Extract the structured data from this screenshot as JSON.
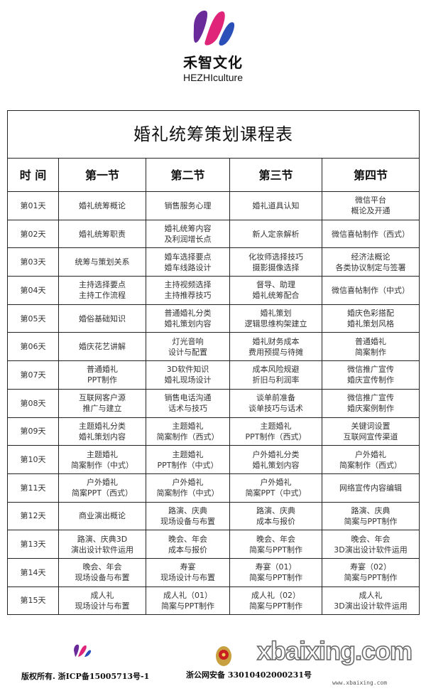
{
  "brand": {
    "name_cn": "禾智文化",
    "name_en": "HEZHIculture"
  },
  "table": {
    "title": "婚礼统筹策划课程表",
    "headers": [
      "时 间",
      "第一节",
      "第二节",
      "第三节",
      "第四节"
    ],
    "rows": [
      {
        "day": "第01天",
        "cells": [
          [
            "婚礼统筹概论"
          ],
          [
            "销售服务心理"
          ],
          [
            "婚礼道具认知"
          ],
          [
            "微信平台",
            "概论及开通"
          ]
        ]
      },
      {
        "day": "第02天",
        "cells": [
          [
            "婚礼统筹职责"
          ],
          [
            "婚礼统筹内容",
            "及利润增长点"
          ],
          [
            "新人定亲解析"
          ],
          [
            "微信喜帖制作（西式）"
          ]
        ]
      },
      {
        "day": "第03天",
        "cells": [
          [
            "统筹与策划关系"
          ],
          [
            "婚车选择要点",
            "婚车线路设计"
          ],
          [
            "化妆师选择技巧",
            "摄影摄像选择"
          ],
          [
            "经济法概论",
            "各类协议制定与签署"
          ]
        ]
      },
      {
        "day": "第04天",
        "cells": [
          [
            "主持选择要点",
            "主持工作流程"
          ],
          [
            "主持视频选择",
            "主持推荐技巧"
          ],
          [
            "督导、助理",
            "婚礼统筹配合"
          ],
          [
            "微信喜帖制作（中式）"
          ]
        ]
      },
      {
        "day": "第05天",
        "cells": [
          [
            "婚俗基础知识"
          ],
          [
            "普通婚礼分类",
            "婚礼策划内容"
          ],
          [
            "婚礼策划",
            "逻辑思维构架建立"
          ],
          [
            "婚庆色彩搭配",
            "婚礼策划风格"
          ]
        ]
      },
      {
        "day": "第06天",
        "cells": [
          [
            "婚庆花艺讲解"
          ],
          [
            "灯光音响",
            "设计与配置"
          ],
          [
            "婚礼财务成本",
            "费用预提与待摊"
          ],
          [
            "普通婚礼",
            "简案制作"
          ]
        ]
      },
      {
        "day": "第07天",
        "cells": [
          [
            "普通婚礼",
            "PPT制作"
          ],
          [
            "3D软件知识",
            "婚礼现场设计"
          ],
          [
            "成本风险规避",
            "折旧与利润率"
          ],
          [
            "微信推广宣传",
            "婚庆宣传制作"
          ]
        ]
      },
      {
        "day": "第08天",
        "cells": [
          [
            "互联网客户源",
            "推广与建立"
          ],
          [
            "销售电话沟通",
            "话术与技巧"
          ],
          [
            "谈单前准备",
            "谈单技巧与话术"
          ],
          [
            "微信推广宣传",
            "婚庆案例制作"
          ]
        ]
      },
      {
        "day": "第09天",
        "cells": [
          [
            "主题婚礼分类",
            "婚礼策划内容"
          ],
          [
            "主题婚礼",
            "简案制作（西式）"
          ],
          [
            "主题婚礼",
            "PPT制作（西式）"
          ],
          [
            "关键词设置",
            "互联网宣传渠道"
          ]
        ]
      },
      {
        "day": "第10天",
        "cells": [
          [
            "主题婚礼",
            "简案制作（中式）"
          ],
          [
            "主题婚礼",
            "PPT制作（中式）"
          ],
          [
            "户外婚礼分类",
            "婚礼策划内容"
          ],
          [
            "户外婚礼",
            "简案制作（西式）"
          ]
        ]
      },
      {
        "day": "第11天",
        "cells": [
          [
            "户外婚礼",
            "简案PPT（西式）"
          ],
          [
            "户外婚礼",
            "简案制作（中式）"
          ],
          [
            "户外婚礼",
            "简案PPT（中式）"
          ],
          [
            "网络宣传内容编辑"
          ]
        ]
      },
      {
        "day": "第12天",
        "cells": [
          [
            "商业演出概论"
          ],
          [
            "路演、庆典",
            "现场设备与布置"
          ],
          [
            "路演、庆典",
            "成本与报价"
          ],
          [
            "路演、庆典",
            "简案与PPT制作"
          ]
        ]
      },
      {
        "day": "第13天",
        "cells": [
          [
            "路演、庆典3D",
            "演出设计软件运用"
          ],
          [
            "晚会、年会",
            "成本与报价"
          ],
          [
            "晚会、年会",
            "简案与PPT制作"
          ],
          [
            "晚会、年会",
            "3D演出设计软件运用"
          ]
        ]
      },
      {
        "day": "第14天",
        "cells": [
          [
            "晚会、年会",
            "现场设备与布置"
          ],
          [
            "寿宴",
            "现场设计与布置"
          ],
          [
            "寿宴（01）",
            "简案与PPT制作"
          ],
          [
            "寿宴（02）",
            "简案与PPT制作"
          ]
        ]
      },
      {
        "day": "第15天",
        "cells": [
          [
            "成人礼",
            "现场设计与布置"
          ],
          [
            "成人礼（01）",
            "简案与PPT制作"
          ],
          [
            "成人礼（02）",
            "简案与PPT制作"
          ],
          [
            "成人礼",
            "3D演出设计软件运用"
          ]
        ]
      }
    ]
  },
  "footer": {
    "copyright": "版权所有. 浙ICP备15005713号-1",
    "police": "浙公网安备 33010402000231号",
    "watermark": "xbaixing.com",
    "watermark_url": "www.xbaixing.com"
  },
  "colors": {
    "logo_pink": "#e0247a",
    "logo_blue": "#2b4fb8",
    "logo_purple": "#6a2a9a"
  }
}
